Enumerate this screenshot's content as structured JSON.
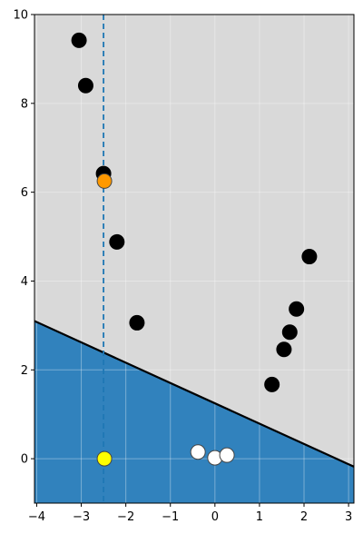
{
  "chart_data": {
    "type": "scatter",
    "title": "",
    "xlabel": "",
    "ylabel": "",
    "xlim": [
      -4.05,
      3.12
    ],
    "ylim": [
      -1.0,
      10.0
    ],
    "xticks": [
      -4,
      -3,
      -2,
      -1,
      0,
      1,
      2,
      3
    ],
    "yticks": [
      0,
      2,
      4,
      6,
      8,
      10
    ],
    "xtick_labels": [
      "−4",
      "−3",
      "−2",
      "−1",
      "0",
      "1",
      "2",
      "3"
    ],
    "ytick_labels": [
      "0",
      "2",
      "4",
      "6",
      "8",
      "10"
    ],
    "grid": true,
    "legend": "none",
    "decision_boundary": {
      "points": [
        [
          -4.05,
          3.1
        ],
        [
          3.12,
          -0.18
        ]
      ]
    },
    "vertical_line": {
      "x": -2.5,
      "style": "dashed"
    },
    "series": [
      {
        "class": "outside",
        "color": "#000000",
        "points": [
          [
            -3.05,
            9.42
          ],
          [
            -2.9,
            8.4
          ],
          [
            -2.5,
            6.42
          ],
          [
            -2.2,
            4.88
          ],
          [
            -1.75,
            3.06
          ],
          [
            2.12,
            4.55
          ],
          [
            1.83,
            3.37
          ],
          [
            1.68,
            2.85
          ],
          [
            1.55,
            2.46
          ],
          [
            1.28,
            1.67
          ]
        ]
      },
      {
        "class": "inside",
        "color": "#ffffff",
        "points": [
          [
            -0.38,
            0.15
          ],
          [
            0.0,
            0.02
          ],
          [
            0.27,
            0.08
          ]
        ]
      },
      {
        "class": "highlight-orange",
        "color": "#ff9900",
        "points": [
          [
            -2.48,
            6.25
          ]
        ]
      },
      {
        "class": "highlight-yellow",
        "color": "#ffff00",
        "points": [
          [
            -2.48,
            0.0
          ]
        ]
      }
    ]
  },
  "colors": {
    "upper_region": "#d9d9d9",
    "lower_region": "#3182bd",
    "boundary_line": "#000000",
    "vertical_line": "#1f77b4",
    "grid": "#ffffff"
  }
}
